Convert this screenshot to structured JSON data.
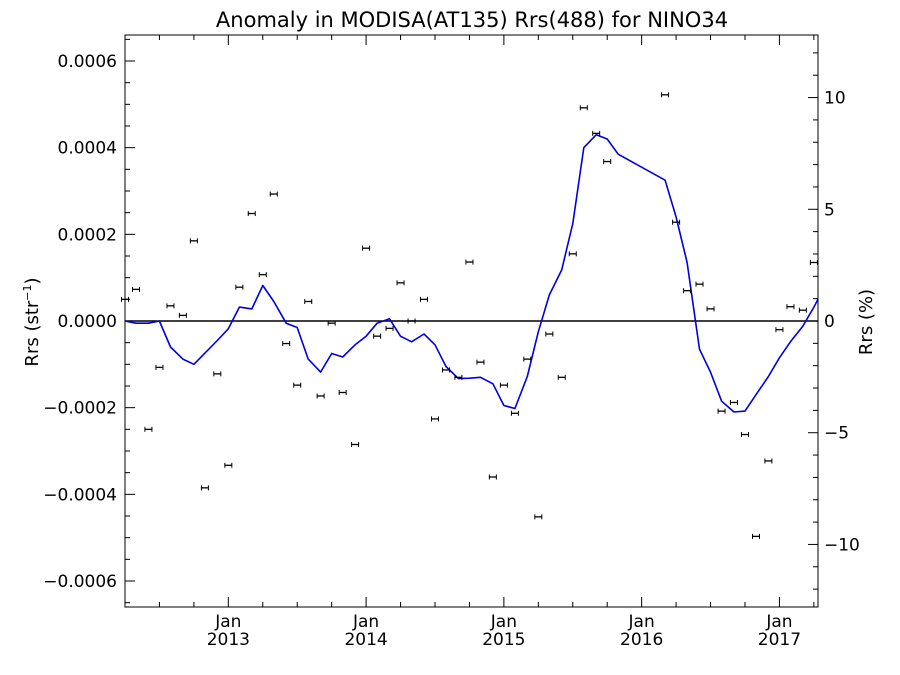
{
  "chart_data": {
    "type": "scatter",
    "title": "Anomaly in MODISA(AT135) Rrs(488) for NINO34",
    "ylabel_left": "Rrs (str",
    "ylabel_left_sup": "−1",
    "ylabel_left_end": ")",
    "ylabel_right": "Rrs (%)",
    "xlim": [
      2012.25,
      2017.28
    ],
    "ylim_left": [
      -0.00066,
      0.00066
    ],
    "ylim_right": [
      -12.8,
      12.8
    ],
    "left_ticks": [
      {
        "value": 0.0006,
        "label": "0.0006"
      },
      {
        "value": 0.0004,
        "label": "0.0004"
      },
      {
        "value": 0.0002,
        "label": "0.0002"
      },
      {
        "value": 0.0,
        "label": "0.0000"
      },
      {
        "value": -0.0002,
        "label": "−0.0002"
      },
      {
        "value": -0.0004,
        "label": "−0.0004"
      },
      {
        "value": -0.0006,
        "label": "−0.0006"
      }
    ],
    "right_ticks": [
      {
        "value": 10,
        "label": "10"
      },
      {
        "value": 5,
        "label": "5"
      },
      {
        "value": 0,
        "label": "0"
      },
      {
        "value": -5,
        "label": "−5"
      },
      {
        "value": -10,
        "label": "−10"
      }
    ],
    "x_ticks": [
      {
        "value": 2013.0,
        "month": "Jan",
        "year": "2013"
      },
      {
        "value": 2014.0,
        "month": "Jan",
        "year": "2014"
      },
      {
        "value": 2015.0,
        "month": "Jan",
        "year": "2015"
      },
      {
        "value": 2016.0,
        "month": "Jan",
        "year": "2016"
      },
      {
        "value": 2017.0,
        "month": "Jan",
        "year": "2017"
      }
    ],
    "series": [
      {
        "kind": "points_with_error_bars",
        "color": "#000000",
        "x": [
          2012.25,
          2012.33,
          2012.42,
          2012.5,
          2012.58,
          2012.67,
          2012.75,
          2012.83,
          2012.92,
          2013.0,
          2013.08,
          2013.17,
          2013.25,
          2013.33,
          2013.42,
          2013.5,
          2013.58,
          2013.67,
          2013.75,
          2013.83,
          2013.92,
          2014.0,
          2014.08,
          2014.17,
          2014.25,
          2014.33,
          2014.42,
          2014.5,
          2014.58,
          2014.67,
          2014.75,
          2014.83,
          2014.92,
          2015.0,
          2015.08,
          2015.17,
          2015.25,
          2015.33,
          2015.42,
          2015.5,
          2015.58,
          2015.67,
          2015.75,
          2016.17,
          2016.25,
          2016.33,
          2016.42,
          2016.5,
          2016.58,
          2016.67,
          2016.75,
          2016.83,
          2016.92,
          2017.0,
          2017.08,
          2017.17,
          2017.25
        ],
        "y": [
          5e-05,
          7.3e-05,
          -0.00025,
          -0.000107,
          3.5e-05,
          1.3e-05,
          0.000185,
          -0.000385,
          -0.000122,
          -0.000333,
          7.8e-05,
          0.000248,
          0.000107,
          0.000293,
          -5.2e-05,
          -0.000148,
          4.5e-05,
          -0.000173,
          -5e-06,
          -0.000165,
          -0.000285,
          0.000168,
          -3.5e-05,
          -1.7e-05,
          8.8e-05,
          0.0,
          5e-05,
          -0.000226,
          -0.000113,
          -0.00013,
          0.000136,
          -9.5e-05,
          -0.00036,
          -0.000148,
          -0.000213,
          -8.8e-05,
          -0.000452,
          -3e-05,
          -0.00013,
          0.000155,
          0.000492,
          0.000433,
          0.000368,
          0.000522,
          0.000228,
          7e-05,
          8.5e-05,
          2.8e-05,
          -0.000208,
          -0.000188,
          -0.000262,
          -0.000497,
          -0.000323,
          -2e-05,
          3.3e-05,
          2.5e-05,
          0.000135
        ]
      },
      {
        "kind": "line",
        "color": "#0000e0",
        "x": [
          2012.25,
          2012.33,
          2012.42,
          2012.5,
          2012.58,
          2012.67,
          2012.75,
          2012.92,
          2013.0,
          2013.08,
          2013.17,
          2013.25,
          2013.33,
          2013.42,
          2013.5,
          2013.58,
          2013.67,
          2013.75,
          2013.83,
          2013.92,
          2014.0,
          2014.08,
          2014.17,
          2014.25,
          2014.33,
          2014.42,
          2014.5,
          2014.58,
          2014.67,
          2014.75,
          2014.83,
          2014.92,
          2015.0,
          2015.08,
          2015.17,
          2015.25,
          2015.33,
          2015.42,
          2015.5,
          2015.58,
          2015.67,
          2015.75,
          2015.83,
          2016.17,
          2016.25,
          2016.33,
          2016.42,
          2016.5,
          2016.58,
          2016.67,
          2016.75,
          2016.83,
          2016.92,
          2017.0,
          2017.08,
          2017.17,
          2017.25,
          2017.28
        ],
        "y": [
          0.0,
          -5e-06,
          -5e-06,
          0.0,
          -6e-05,
          -8.8e-05,
          -0.0001,
          -4.5e-05,
          -1.8e-05,
          3.2e-05,
          2.8e-05,
          8.2e-05,
          4.5e-05,
          -5e-06,
          -1.5e-05,
          -8.8e-05,
          -0.000118,
          -7.5e-05,
          -8.3e-05,
          -5.5e-05,
          -3.5e-05,
          -5e-06,
          5e-06,
          -3.5e-05,
          -4.8e-05,
          -3e-05,
          -5.5e-05,
          -0.000105,
          -0.000133,
          -0.000132,
          -0.00013,
          -0.000145,
          -0.000195,
          -0.000202,
          -0.000128,
          -2.5e-05,
          6e-05,
          0.000118,
          0.000225,
          0.0004,
          0.00043,
          0.00042,
          0.000385,
          0.000325,
          0.00024,
          0.000135,
          -6.5e-05,
          -0.000118,
          -0.000185,
          -0.00021,
          -0.000208,
          -0.00017,
          -0.000128,
          -8.5e-05,
          -4.8e-05,
          -1.2e-05,
          3.2e-05,
          5e-05
        ]
      }
    ],
    "zero_line": true,
    "grid": false,
    "legend": "none"
  }
}
